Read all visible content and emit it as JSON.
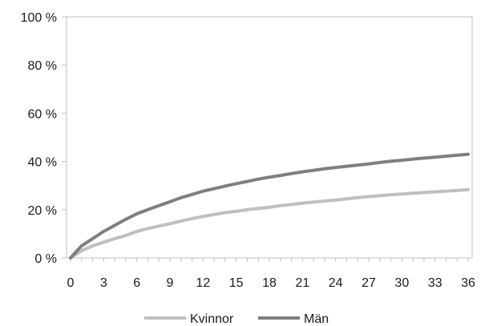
{
  "chart_data": {
    "type": "line",
    "title": "",
    "xlabel": "",
    "ylabel": "",
    "xlim": [
      0,
      36
    ],
    "ylim": [
      0,
      100
    ],
    "x_ticks": [
      0,
      3,
      6,
      9,
      12,
      15,
      18,
      21,
      24,
      27,
      30,
      33,
      36
    ],
    "y_ticks": [
      0,
      20,
      40,
      60,
      80,
      100
    ],
    "x_tick_labels": [
      "0",
      "3",
      "6",
      "9",
      "12",
      "15",
      "18",
      "21",
      "24",
      "27",
      "30",
      "33",
      "36"
    ],
    "y_tick_labels": [
      "0 %",
      "20 %",
      "40 %",
      "60 %",
      "80 %",
      "100 %"
    ],
    "grid": false,
    "legend_position": "bottom",
    "x": [
      0,
      1,
      2,
      3,
      4,
      5,
      6,
      7,
      8,
      9,
      10,
      11,
      12,
      13,
      14,
      15,
      16,
      17,
      18,
      19,
      20,
      21,
      22,
      23,
      24,
      25,
      26,
      27,
      28,
      29,
      30,
      31,
      32,
      33,
      34,
      35,
      36
    ],
    "series": [
      {
        "name": "Kvinnor",
        "color": "#bfbfbf",
        "values": [
          0,
          3,
          5,
          6.5,
          8,
          9.3,
          11,
          12.2,
          13.2,
          14.2,
          15.3,
          16.3,
          17.2,
          18,
          18.8,
          19.3,
          20,
          20.5,
          21,
          21.7,
          22.2,
          22.7,
          23.2,
          23.6,
          24,
          24.5,
          25,
          25.4,
          25.8,
          26.2,
          26.5,
          26.8,
          27.1,
          27.4,
          27.7,
          28,
          28.3
        ]
      },
      {
        "name": "Män",
        "color": "#7f7f7f",
        "values": [
          0,
          5,
          8,
          11,
          13.5,
          16,
          18.3,
          20,
          21.7,
          23.3,
          25,
          26.3,
          27.7,
          28.7,
          29.8,
          30.8,
          31.7,
          32.7,
          33.5,
          34.2,
          35,
          35.7,
          36.3,
          37,
          37.5,
          38,
          38.5,
          39,
          39.6,
          40.1,
          40.5,
          41,
          41.4,
          41.8,
          42.2,
          42.6,
          43
        ]
      }
    ]
  }
}
